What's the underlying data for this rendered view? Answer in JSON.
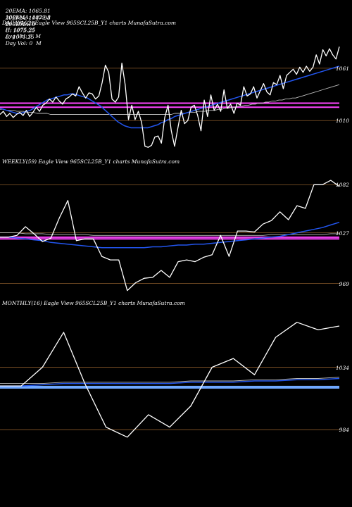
{
  "header": {
    "row1": [
      {
        "name": "ema20",
        "text": "20EMA: 1065.81"
      },
      {
        "name": "ema100",
        "text": "100EMA: 1029.3"
      },
      {
        "name": "open",
        "text": "O: 1071.25"
      },
      {
        "name": "high",
        "text": "H: 1075.25"
      },
      {
        "name": "avgvol",
        "text": "Avg Vol: 0  M"
      }
    ],
    "row2": [
      {
        "name": "ema30",
        "text": "30EMA: 1047.98"
      },
      {
        "name": "ema200",
        "text": "200EMA: 0"
      },
      {
        "name": "close",
        "text": "C: 1075.25"
      },
      {
        "name": "low",
        "text": "L: 1071.25"
      },
      {
        "name": "dayvol",
        "text": "Day Vol: 0  M"
      }
    ]
  },
  "colors": {
    "price": "#ffffff",
    "ema_fast": "#2255ee",
    "ema_slow": "#bbbbbb",
    "pivot": "#ff44ff",
    "support_line": "#8a5a2a",
    "band": "#6fa8ff"
  },
  "chart_data": [
    {
      "type": "line",
      "label": "DAILY(102) Eagle   View  965SCL25B_Y1 charts MunafaSutra.com",
      "ticks": [
        "1061",
        "1010"
      ],
      "tick_values": [
        1061,
        1010
      ],
      "ylim": [
        980,
        1100
      ],
      "series": [
        {
          "values": [
            1016,
            1019,
            1014,
            1017,
            1013,
            1016,
            1018,
            1015,
            1020,
            1014,
            1018,
            1023,
            1019,
            1025,
            1027,
            1031,
            1028,
            1033,
            1029,
            1026,
            1031,
            1033,
            1036,
            1034,
            1043,
            1037,
            1032,
            1037,
            1036,
            1031,
            1034,
            1047,
            1064,
            1057,
            1031,
            1028,
            1033,
            1066,
            1045,
            1011,
            1025,
            1011,
            1019,
            1008,
            985,
            984,
            986,
            994,
            995,
            988,
            1013,
            1025,
            1000,
            985,
            1003,
            1020,
            1007,
            1010,
            1023,
            1025,
            1015,
            1000,
            1030,
            1014,
            1035,
            1020,
            1026,
            1019,
            1040,
            1022,
            1026,
            1017,
            1027,
            1025,
            1043,
            1034,
            1036,
            1043,
            1032,
            1039,
            1046,
            1038,
            1035,
            1047,
            1045,
            1054,
            1041,
            1054,
            1057,
            1060,
            1055,
            1062,
            1057,
            1063,
            1058,
            1062,
            1074,
            1065,
            1079,
            1073,
            1080,
            1074,
            1070,
            1082
          ]
        },
        {
          "values": [
            1022,
            1021,
            1020,
            1019,
            1018,
            1017,
            1017,
            1018,
            1019,
            1020,
            1022,
            1024,
            1026,
            1028,
            1030,
            1031,
            1032,
            1033,
            1034,
            1035,
            1035,
            1036,
            1036,
            1035,
            1034,
            1033,
            1032,
            1030,
            1028,
            1026,
            1024,
            1021,
            1018,
            1015,
            1012,
            1009,
            1007,
            1005,
            1004,
            1003,
            1003,
            1003,
            1003,
            1003,
            1003,
            1004,
            1005,
            1006,
            1008,
            1009,
            1011,
            1012,
            1014,
            1015,
            1016,
            1017,
            1018,
            1019,
            1020,
            1021,
            1022,
            1023,
            1024,
            1025,
            1026,
            1027,
            1028,
            1029,
            1030,
            1031,
            1032,
            1033,
            1034,
            1035,
            1036,
            1037,
            1038,
            1039,
            1040,
            1041,
            1042,
            1043,
            1044,
            1045,
            1046,
            1047,
            1048,
            1049,
            1050,
            1051,
            1052,
            1053,
            1054,
            1055,
            1056,
            1057,
            1058,
            1059,
            1060,
            1061,
            1062,
            1063
          ]
        },
        {
          "values": [
            1021,
            1021,
            1020,
            1020,
            1020,
            1019,
            1019,
            1019,
            1018,
            1018,
            1018,
            1017,
            1017,
            1017,
            1017,
            1016,
            1016,
            1016,
            1016,
            1016,
            1016,
            1016,
            1016,
            1016,
            1016,
            1016,
            1016,
            1016,
            1016,
            1016,
            1016,
            1016,
            1016,
            1016,
            1016,
            1016,
            1016,
            1016,
            1016,
            1016,
            1016,
            1016,
            1016,
            1016,
            1016,
            1016,
            1016,
            1016,
            1016,
            1016,
            1016,
            1016,
            1017,
            1017,
            1017,
            1017,
            1018,
            1018,
            1018,
            1019,
            1019,
            1019,
            1020,
            1020,
            1020,
            1021,
            1021,
            1022,
            1022,
            1023,
            1023,
            1024,
            1024,
            1025,
            1025,
            1026,
            1026,
            1027,
            1027,
            1028,
            1028,
            1029,
            1029,
            1030,
            1030,
            1031,
            1031,
            1032,
            1032,
            1033,
            1034,
            1035,
            1036,
            1037,
            1038,
            1039,
            1040,
            1041,
            1042,
            1043,
            1044,
            1045
          ]
        }
      ],
      "hlines": [
        {
          "value": 1061,
          "kind": "support_line"
        },
        {
          "value": 1010,
          "kind": "support_line"
        },
        {
          "value": 1027,
          "kind": "pivot"
        },
        {
          "value": 1023,
          "kind": "pivot"
        }
      ]
    },
    {
      "type": "line",
      "label": "WEEKLY(59) Eagle   View  965SCL25B_Y1 charts MunafaSutra.com",
      "ticks": [
        "1082",
        "1027",
        "969"
      ],
      "tick_values": [
        1082,
        1027,
        969
      ],
      "ylim": [
        955,
        1100
      ],
      "series": [
        {
          "values": [
            1022,
            1022,
            1024,
            1034,
            1026,
            1017,
            1021,
            1044,
            1064,
            1018,
            1020,
            1020,
            1000,
            996,
            996,
            961,
            970,
            975,
            976,
            984,
            976,
            994,
            996,
            994,
            999,
            1002,
            1024,
            1000,
            1029,
            1029,
            1028,
            1037,
            1041,
            1051,
            1042,
            1058,
            1055,
            1082,
            1082,
            1087,
            1080
          ]
        },
        {
          "values": [
            1022,
            1022,
            1021,
            1020,
            1019,
            1018,
            1016,
            1015,
            1014,
            1013,
            1012,
            1011,
            1010,
            1010,
            1010,
            1010,
            1010,
            1010,
            1011,
            1011,
            1012,
            1013,
            1013,
            1014,
            1014,
            1015,
            1016,
            1017,
            1018,
            1019,
            1020,
            1021,
            1022,
            1023,
            1025,
            1027,
            1029,
            1031,
            1033,
            1036,
            1039
          ]
        },
        {
          "values": [
            1027,
            1027,
            1027,
            1026,
            1026,
            1026,
            1025,
            1025,
            1025,
            1025,
            1025,
            1024,
            1024,
            1024,
            1024,
            1024,
            1024,
            1024,
            1024,
            1024,
            1024,
            1024,
            1024,
            1024,
            1024,
            1024,
            1024,
            1024,
            1024,
            1024,
            1024,
            1024,
            1025,
            1025,
            1025,
            1025,
            1025,
            1025,
            1025,
            1026,
            1026
          ]
        }
      ],
      "hlines": [
        {
          "value": 1082,
          "kind": "support_line"
        },
        {
          "value": 1027,
          "kind": "support_line"
        },
        {
          "value": 969,
          "kind": "support_line"
        },
        {
          "value": 1022,
          "kind": "pivot"
        },
        {
          "value": 1020,
          "kind": "pivot"
        }
      ]
    },
    {
      "type": "line",
      "label": "MONTHLY(16) Eagle   View  965SCL25B_Y1 charts MunafaSutra.com",
      "ticks": [
        "1034",
        "984"
      ],
      "tick_values": [
        1034,
        984
      ],
      "ylim": [
        970,
        1080
      ],
      "series": [
        {
          "values": [
            1019,
            1019,
            1034,
            1062,
            1021,
            986,
            978,
            996,
            986,
            1003,
            1034,
            1041,
            1028,
            1058,
            1070,
            1064,
            1067
          ]
        },
        {
          "values": [
            1019,
            1019,
            1020,
            1021,
            1021,
            1021,
            1021,
            1021,
            1021,
            1022,
            1022,
            1022,
            1023,
            1023,
            1024,
            1024,
            1025
          ]
        },
        {
          "values": [
            1021,
            1021,
            1021,
            1022,
            1022,
            1022,
            1022,
            1022,
            1022,
            1023,
            1023,
            1023,
            1024,
            1024,
            1025,
            1025,
            1026
          ]
        }
      ],
      "hlines": [
        {
          "value": 1034,
          "kind": "support_line"
        },
        {
          "value": 984,
          "kind": "support_line"
        },
        {
          "value": 1018,
          "kind": "band"
        }
      ]
    }
  ]
}
